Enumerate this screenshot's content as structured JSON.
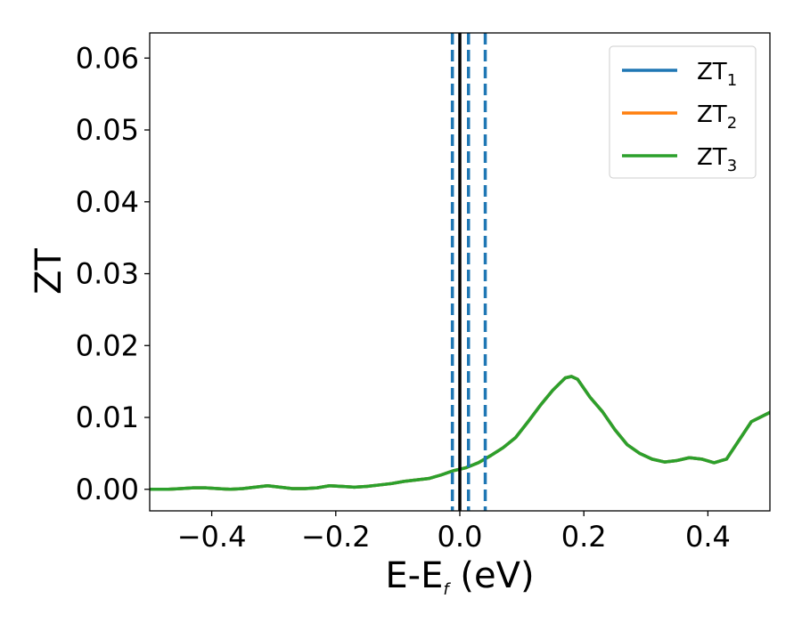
{
  "chart_data": {
    "type": "line",
    "title": "",
    "xlabel": "E-E",
    "xlabel_sub": "f",
    "xlabel_unit": " (eV)",
    "ylabel": "ZT",
    "xlim": [
      -0.5,
      0.5
    ],
    "ylim": [
      -0.003,
      0.0635
    ],
    "x_ticks": [
      -0.4,
      -0.2,
      0.0,
      0.2,
      0.4
    ],
    "x_tick_labels": [
      "−0.4",
      "−0.2",
      "0.0",
      "0.2",
      "0.4"
    ],
    "y_ticks": [
      0.0,
      0.01,
      0.02,
      0.03,
      0.04,
      0.05,
      0.06
    ],
    "y_tick_labels": [
      "0.00",
      "0.01",
      "0.02",
      "0.03",
      "0.04",
      "0.05",
      "0.06"
    ],
    "grid": false,
    "legend_position": "top-right",
    "x": [
      -0.5,
      -0.47,
      -0.45,
      -0.43,
      -0.41,
      -0.39,
      -0.37,
      -0.35,
      -0.33,
      -0.31,
      -0.29,
      -0.27,
      -0.25,
      -0.23,
      -0.21,
      -0.19,
      -0.17,
      -0.15,
      -0.13,
      -0.11,
      -0.09,
      -0.07,
      -0.05,
      -0.03,
      -0.01,
      0.01,
      0.03,
      0.05,
      0.07,
      0.09,
      0.11,
      0.13,
      0.15,
      0.17,
      0.18,
      0.19,
      0.21,
      0.23,
      0.25,
      0.27,
      0.29,
      0.31,
      0.33,
      0.35,
      0.37,
      0.39,
      0.41,
      0.43,
      0.45,
      0.47,
      0.5
    ],
    "series": [
      {
        "name": "ZT",
        "name_sub": "1",
        "color": "#1f77b4",
        "values": [
          0.0,
          0.0,
          0.0001,
          0.0002,
          0.0002,
          0.0001,
          0.0,
          0.0001,
          0.0003,
          0.0005,
          0.0003,
          0.0001,
          0.0001,
          0.0002,
          0.0005,
          0.0004,
          0.0003,
          0.0004,
          0.0006,
          0.0008,
          0.0011,
          0.0013,
          0.0015,
          0.002,
          0.0026,
          0.003,
          0.0037,
          0.0047,
          0.0058,
          0.0072,
          0.0094,
          0.0117,
          0.0138,
          0.0155,
          0.0157,
          0.0153,
          0.0128,
          0.0108,
          0.0083,
          0.0062,
          0.005,
          0.0042,
          0.0038,
          0.004,
          0.0044,
          0.0042,
          0.0037,
          0.0042,
          0.0068,
          0.0094,
          0.0107
        ]
      },
      {
        "name": "ZT",
        "name_sub": "2",
        "color": "#ff7f0e",
        "values": [
          0.0,
          0.0,
          0.0001,
          0.0002,
          0.0002,
          0.0001,
          0.0,
          0.0001,
          0.0003,
          0.0005,
          0.0003,
          0.0001,
          0.0001,
          0.0002,
          0.0005,
          0.0004,
          0.0003,
          0.0004,
          0.0006,
          0.0008,
          0.0011,
          0.0013,
          0.0015,
          0.002,
          0.0026,
          0.003,
          0.0037,
          0.0047,
          0.0058,
          0.0072,
          0.0094,
          0.0117,
          0.0138,
          0.0155,
          0.0157,
          0.0153,
          0.0128,
          0.0108,
          0.0083,
          0.0062,
          0.005,
          0.0042,
          0.0038,
          0.004,
          0.0044,
          0.0042,
          0.0037,
          0.0042,
          0.0068,
          0.0094,
          0.0107
        ]
      },
      {
        "name": "ZT",
        "name_sub": "3",
        "color": "#2ca02c",
        "values": [
          0.0,
          0.0,
          0.0001,
          0.0002,
          0.0002,
          0.0001,
          0.0,
          0.0001,
          0.0003,
          0.0005,
          0.0003,
          0.0001,
          0.0001,
          0.0002,
          0.0005,
          0.0004,
          0.0003,
          0.0004,
          0.0006,
          0.0008,
          0.0011,
          0.0013,
          0.0015,
          0.002,
          0.0026,
          0.003,
          0.0037,
          0.0047,
          0.0058,
          0.0072,
          0.0094,
          0.0117,
          0.0138,
          0.0155,
          0.0157,
          0.0153,
          0.0128,
          0.0108,
          0.0083,
          0.0062,
          0.005,
          0.0042,
          0.0038,
          0.004,
          0.0044,
          0.0042,
          0.0037,
          0.0042,
          0.0068,
          0.0094,
          0.0107
        ]
      }
    ],
    "vertical_lines": [
      {
        "x": 0.0,
        "style": "solid",
        "color": "#000000"
      },
      {
        "x": -0.012,
        "style": "dashed",
        "color": "#1f77b4"
      },
      {
        "x": 0.014,
        "style": "dashed",
        "color": "#1f77b4"
      },
      {
        "x": 0.041,
        "style": "dashed",
        "color": "#1f77b4"
      }
    ]
  }
}
